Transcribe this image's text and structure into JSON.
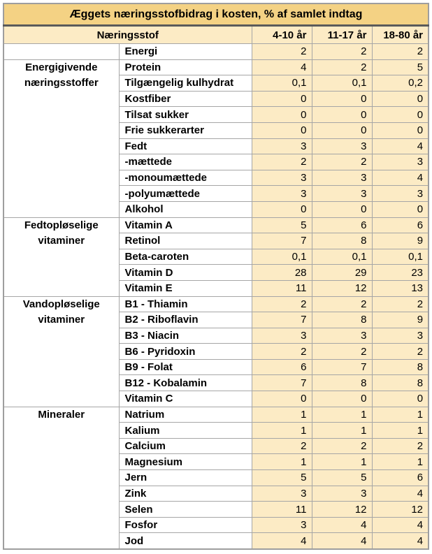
{
  "colors": {
    "title_bg": "#f4d284",
    "header_bg": "#fcebc5",
    "value_cell_bg": "#fcebc5",
    "name_cell_bg": "#ffffff",
    "grid_line": "#a6a6a6",
    "title_underline": "#5a5a5a",
    "outer_border": "#9e9e9e",
    "text": "#000000"
  },
  "chart_data": {
    "type": "table",
    "title": "Æggets næringsstofbidrag i kosten, % af samlet indtag",
    "nutrient_header": "Næringsstof",
    "age_headers": [
      "4-10 år",
      "11-17 år",
      "18-80 år"
    ],
    "groups": [
      {
        "label": "",
        "rows": [
          [
            "Energi",
            "2",
            "2",
            "2"
          ]
        ]
      },
      {
        "label": "Energigivende næringsstoffer",
        "rows": [
          [
            "Protein",
            "4",
            "2",
            "5"
          ],
          [
            "Tilgængelig kulhydrat",
            "0,1",
            "0,1",
            "0,2"
          ],
          [
            "Kostfiber",
            "0",
            "0",
            "0"
          ],
          [
            "Tilsat sukker",
            "0",
            "0",
            "0"
          ],
          [
            "Frie sukkerarter",
            "0",
            "0",
            "0"
          ],
          [
            "Fedt",
            "3",
            "3",
            "4"
          ],
          [
            "-mættede",
            "2",
            "2",
            "3"
          ],
          [
            "-monoumættede",
            "3",
            "3",
            "4"
          ],
          [
            "-polyumættede",
            "3",
            "3",
            "3"
          ],
          [
            "Alkohol",
            "0",
            "0",
            "0"
          ]
        ]
      },
      {
        "label": "Fedtopløselige vitaminer",
        "rows": [
          [
            "Vitamin A",
            "5",
            "6",
            "6"
          ],
          [
            "Retinol",
            "7",
            "8",
            "9"
          ],
          [
            "Beta-caroten",
            "0,1",
            "0,1",
            "0,1"
          ],
          [
            "Vitamin D",
            "28",
            "29",
            "23"
          ],
          [
            "Vitamin E",
            "11",
            "12",
            "13"
          ]
        ]
      },
      {
        "label": "Vandopløselige vitaminer",
        "rows": [
          [
            "B1 - Thiamin",
            "2",
            "2",
            "2"
          ],
          [
            "B2 - Riboflavin",
            "7",
            "8",
            "9"
          ],
          [
            "B3 - Niacin",
            "3",
            "3",
            "3"
          ],
          [
            "B6 - Pyridoxin",
            "2",
            "2",
            "2"
          ],
          [
            "B9 - Folat",
            "6",
            "7",
            "8"
          ],
          [
            "B12 - Kobalamin",
            "7",
            "8",
            "8"
          ],
          [
            "Vitamin C",
            "0",
            "0",
            "0"
          ]
        ]
      },
      {
        "label": "Mineraler",
        "rows": [
          [
            "Natrium",
            "1",
            "1",
            "1"
          ],
          [
            "Kalium",
            "1",
            "1",
            "1"
          ],
          [
            "Calcium",
            "2",
            "2",
            "2"
          ],
          [
            "Magnesium",
            "1",
            "1",
            "1"
          ],
          [
            "Jern",
            "5",
            "5",
            "6"
          ],
          [
            "Zink",
            "3",
            "3",
            "4"
          ],
          [
            "Selen",
            "11",
            "12",
            "12"
          ],
          [
            "Fosfor",
            "3",
            "4",
            "4"
          ],
          [
            "Jod",
            "4",
            "4",
            "4"
          ]
        ]
      }
    ]
  }
}
